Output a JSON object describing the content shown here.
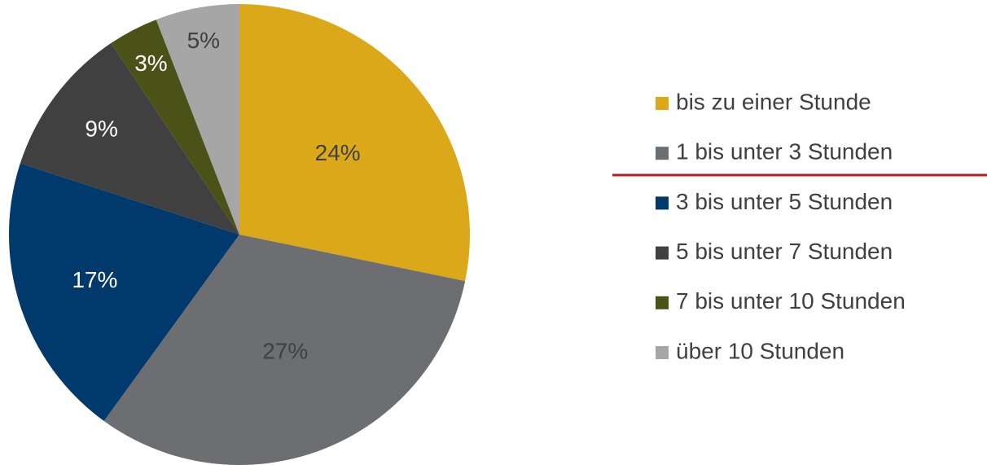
{
  "chart_data": {
    "type": "pie",
    "categories": [
      "bis zu einer Stunde",
      "1 bis unter 3 Stunden",
      "3 bis unter 5 Stunden",
      "5 bis unter 7 Stunden",
      "7 bis unter 10 Stunden",
      "über 10 Stunden"
    ],
    "values": [
      24,
      27,
      17,
      9,
      3,
      5
    ],
    "value_labels": [
      "24%",
      "27%",
      "17%",
      "9%",
      "3%",
      "5%"
    ],
    "colors": [
      "#daa819",
      "#6d6e71",
      "#003a6c",
      "#404040",
      "#4a5218",
      "#a6a6a6"
    ],
    "legend": "right"
  }
}
